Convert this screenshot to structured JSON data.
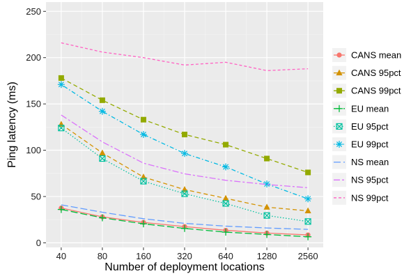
{
  "chart_data": {
    "type": "line",
    "title": "",
    "xlabel": "Number of deployment locations",
    "ylabel": "Ping latency (ms)",
    "x_scale": "log2",
    "ylim": [
      -5,
      260
    ],
    "grid": true,
    "legend_position": "right",
    "x": [
      40,
      80,
      160,
      320,
      640,
      1280,
      2560
    ],
    "x_tick_labels": [
      "40",
      "80",
      "160",
      "320",
      "640",
      "1280",
      "2560"
    ],
    "y_ticks": [
      0,
      50,
      100,
      150,
      200,
      250
    ],
    "y_tick_labels": [
      "0",
      "50",
      "100",
      "150",
      "200",
      "250"
    ],
    "series": [
      {
        "name": "CANS mean",
        "color": "#F8766D",
        "marker": "circle",
        "dash": "solid",
        "values": [
          37.5,
          28,
          22,
          17.5,
          13.5,
          10.5,
          8.5
        ]
      },
      {
        "name": "CANS 95pct",
        "color": "#D39200",
        "marker": "triangle",
        "dash": "dashed",
        "values": [
          128,
          97,
          71,
          57.5,
          48,
          38.5,
          34.5
        ]
      },
      {
        "name": "CANS 99pct",
        "color": "#93AA00",
        "marker": "square",
        "dash": "dashed",
        "values": [
          178,
          154,
          133,
          117,
          106,
          91,
          76
        ]
      },
      {
        "name": "EU mean",
        "color": "#00BA38",
        "marker": "plus",
        "dash": "longdash",
        "values": [
          36,
          27,
          20.5,
          15.5,
          11.5,
          9,
          6.5
        ]
      },
      {
        "name": "EU 95pct",
        "color": "#00C19F",
        "marker": "boxx",
        "dash": "dotted",
        "values": [
          124,
          91,
          66.5,
          53,
          42.5,
          29.5,
          23
        ]
      },
      {
        "name": "EU 99pct",
        "color": "#00B9E3",
        "marker": "asterisk",
        "dash": "dotdash",
        "values": [
          171,
          142,
          117,
          96.5,
          82,
          63.5,
          47.5
        ]
      },
      {
        "name": "NS mean",
        "color": "#619CFF",
        "marker": "none",
        "dash": "longdash",
        "values": [
          41,
          33,
          26,
          21,
          18,
          16,
          14.5
        ]
      },
      {
        "name": "NS 95pct",
        "color": "#DB72FB",
        "marker": "none",
        "dash": "twodash",
        "values": [
          138,
          109,
          86,
          74.5,
          67.5,
          63,
          59.5
        ]
      },
      {
        "name": "NS 99pct",
        "color": "#FF61C3",
        "marker": "none",
        "dash": "dashsmall",
        "values": [
          216,
          206,
          200,
          192,
          195,
          186,
          188
        ]
      }
    ]
  }
}
